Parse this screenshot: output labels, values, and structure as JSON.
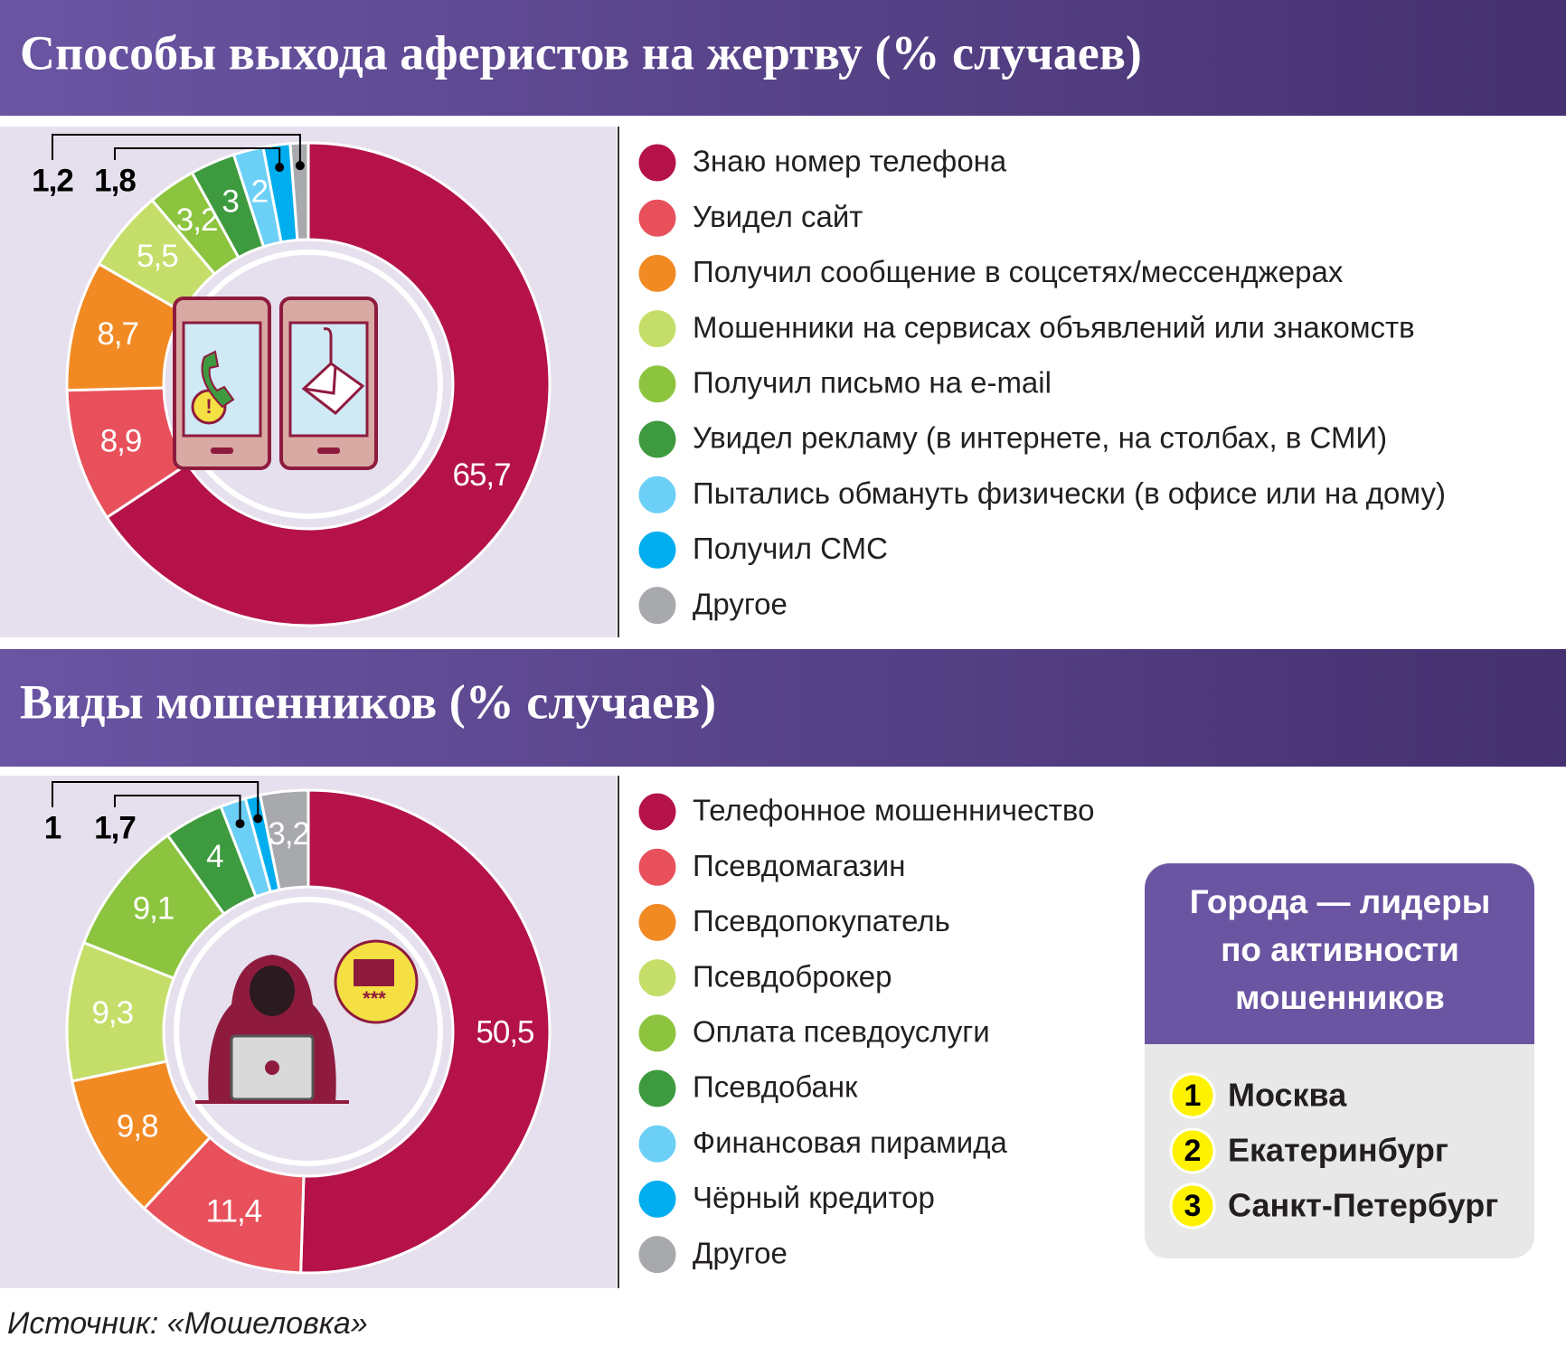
{
  "chart_data": [
    {
      "type": "donut",
      "title": "Способы выхода аферистов на жертву (% случаев)",
      "categories": [
        "Знаю номер телефона",
        "Увидел сайт",
        "Получил сообщение в соцсетях/мессенджерах",
        "Мошенники на сервисах объявлений или знакомств",
        "Получил письмо на e-mail",
        "Увидел рекламу (в интернете, на столбах, в СМИ)",
        "Пытались обмануть физически (в офисе или на дому)",
        "Получил СМС",
        "Другое"
      ],
      "values": [
        65.7,
        8.9,
        8.7,
        5.5,
        3.2,
        3,
        2,
        1.8,
        1.2
      ],
      "value_labels": [
        "65,7",
        "8,9",
        "8,7",
        "5,5",
        "3,2",
        "3",
        "2",
        "1,8",
        "1,2"
      ],
      "colors": [
        "#b5124a",
        "#e8505b",
        "#f28a24",
        "#c5de6a",
        "#8cc43f",
        "#3e9a3e",
        "#6ccff6",
        "#00aeef",
        "#a7a9ac"
      ]
    },
    {
      "type": "donut",
      "title": "Виды мошенников (% случаев)",
      "categories": [
        "Телефонное мошенничество",
        "Псевдомагазин",
        "Псевдопокупатель",
        "Псевдоброкер",
        "Оплата псевдоуслуги",
        "Псевдобанк",
        "Финансовая пирамида",
        "Чёрный кредитор",
        "Другое"
      ],
      "values": [
        50.5,
        11.4,
        9.8,
        9.3,
        9.1,
        4,
        1.7,
        1,
        3.2
      ],
      "value_labels": [
        "50,5",
        "11,4",
        "9,8",
        "9,3",
        "9,1",
        "4",
        "1,7",
        "1",
        "3,2"
      ],
      "colors": [
        "#b5124a",
        "#e8505b",
        "#f28a24",
        "#c5de6a",
        "#8cc43f",
        "#3e9a3e",
        "#6ccff6",
        "#00aeef",
        "#a7a9ac"
      ]
    }
  ],
  "leaders": {
    "title_lines": [
      "Города — лидеры",
      "по активности",
      "мошенников"
    ],
    "items": [
      {
        "rank": 1,
        "city": "Москва"
      },
      {
        "rank": 2,
        "city": "Екатеринбург"
      },
      {
        "rank": 3,
        "city": "Санкт-Петербург"
      }
    ]
  },
  "source": "Источник: «Мошеловка»"
}
